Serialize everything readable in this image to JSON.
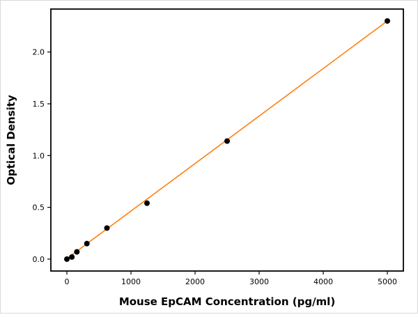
{
  "chart_data": {
    "type": "scatter",
    "title": "",
    "xlabel": "Mouse EpCAM Concentration (pg/ml)",
    "ylabel": "Optical Density",
    "x": [
      0,
      78,
      156,
      312,
      625,
      1250,
      2500,
      5000
    ],
    "y": [
      0.0,
      0.02,
      0.07,
      0.15,
      0.3,
      0.54,
      1.14,
      2.3
    ],
    "fit_line": {
      "x": [
        0,
        5000
      ],
      "y": [
        0.005,
        2.3
      ]
    },
    "xlim": [
      -250,
      5250
    ],
    "ylim": [
      -0.115,
      2.415
    ],
    "x_ticks": [
      0,
      1000,
      2000,
      3000,
      4000,
      5000
    ],
    "x_tick_labels": [
      "0",
      "1000",
      "2000",
      "3000",
      "4000",
      "5000"
    ],
    "y_ticks": [
      0.0,
      0.5,
      1.0,
      1.5,
      2.0
    ],
    "y_tick_labels": [
      "0.0",
      "0.5",
      "1.0",
      "1.5",
      "2.0"
    ],
    "grid": false,
    "legend": false,
    "styles": {
      "point_color": "#000000",
      "line_color": "#ff7f0e",
      "frame_color": "#000000",
      "background": "#ffffff"
    }
  }
}
